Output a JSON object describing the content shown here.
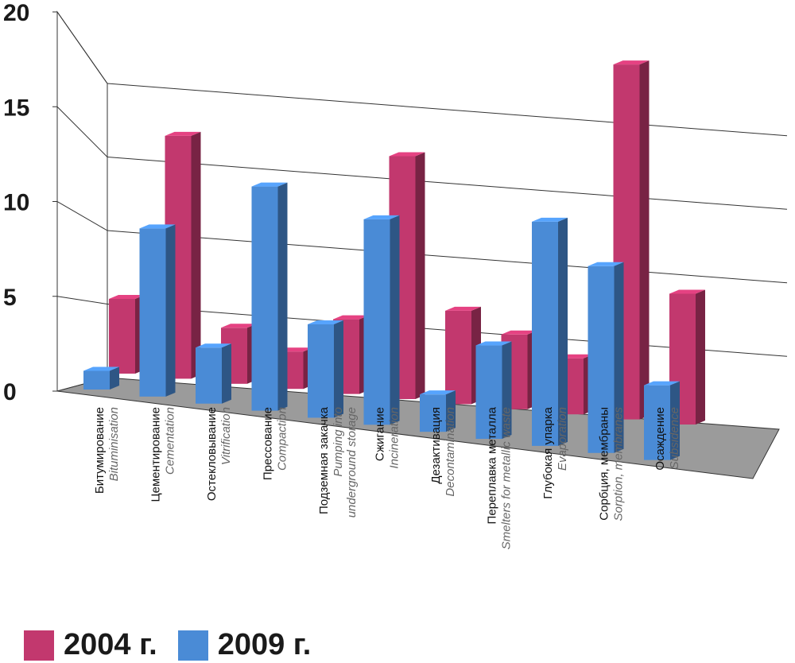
{
  "chart_data": {
    "type": "bar",
    "yticks": [
      "0",
      "5",
      "10",
      "15",
      "20"
    ],
    "ylim": [
      0,
      20
    ],
    "categories": [
      {
        "ru": "Битумирование",
        "en": [
          "Bituminisation"
        ]
      },
      {
        "ru": "Цементирование",
        "en": [
          "Cementation"
        ]
      },
      {
        "ru": "Остекловывание",
        "en": [
          "Vitrification"
        ]
      },
      {
        "ru": "Прессование",
        "en": [
          "Compaction"
        ]
      },
      {
        "ru": "Подземная закачка",
        "en": [
          "Pumping into",
          "underground storage"
        ]
      },
      {
        "ru": "Сжигание",
        "en": [
          "Incineration"
        ]
      },
      {
        "ru": "Дезактивация",
        "en": [
          "Decontamination"
        ]
      },
      {
        "ru": "Переплавка металла",
        "en": [
          "Smelters for metallic waste"
        ]
      },
      {
        "ru": "Глубокая упарка",
        "en": [
          "Evaporation"
        ]
      },
      {
        "ru": "Сорбция, мембраны",
        "en": [
          "Sorption, membranes"
        ]
      },
      {
        "ru": "Осаждение",
        "en": [
          "Subsidence"
        ]
      }
    ],
    "series": [
      {
        "name": "2004 г.",
        "color": "#c2386e",
        "values": [
          4,
          13,
          3,
          2,
          4,
          13,
          5,
          4,
          3,
          19,
          7
        ]
      },
      {
        "name": "2009 г.",
        "color": "#4a8bd6",
        "values": [
          1,
          9,
          3,
          12,
          5,
          11,
          2,
          5,
          12,
          10,
          4
        ]
      }
    ],
    "grid": true,
    "legend_position": "bottom-left"
  }
}
